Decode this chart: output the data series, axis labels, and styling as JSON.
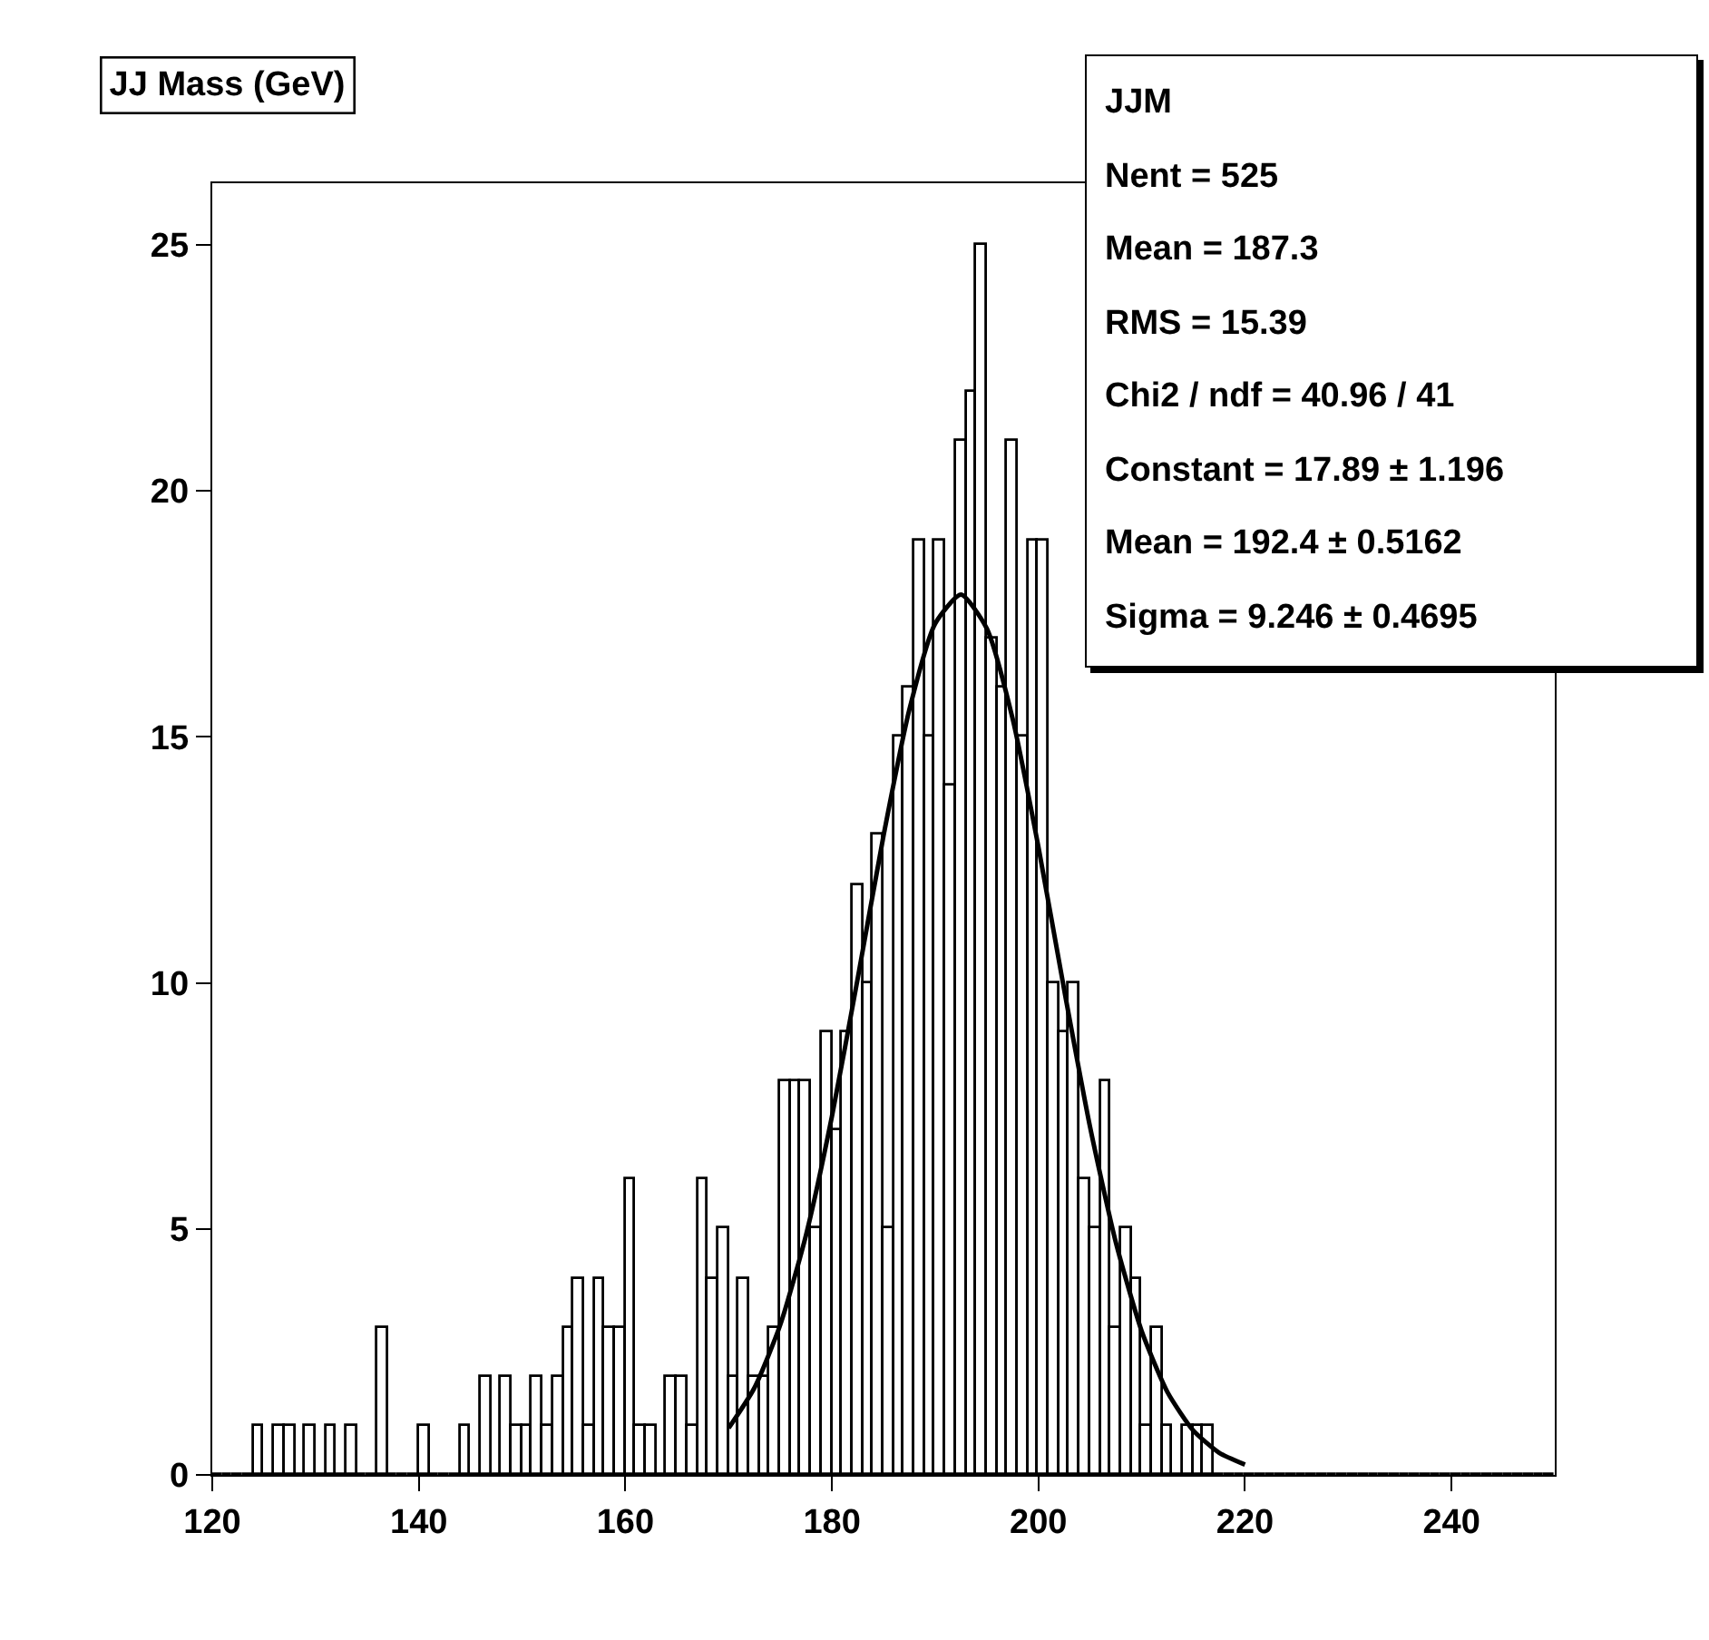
{
  "chart_data": {
    "type": "histogram",
    "title": "JJ Mass (GeV)",
    "bins": [
      120,
      121,
      122,
      123,
      124,
      125,
      126,
      127,
      128,
      129,
      130,
      131,
      132,
      133,
      134,
      135,
      136,
      137,
      138,
      139,
      140,
      141,
      142,
      143,
      144,
      145,
      146,
      147,
      148,
      149,
      150,
      151,
      152,
      153,
      154,
      155,
      156,
      157,
      158,
      159,
      160,
      161,
      162,
      163,
      164,
      165,
      166,
      167,
      168,
      169,
      170,
      171,
      172,
      173,
      174,
      175,
      176,
      177,
      178,
      179,
      180,
      181,
      182,
      183,
      184,
      185,
      186,
      187,
      188,
      189,
      190,
      191,
      192,
      193,
      194,
      195,
      196,
      197,
      198,
      199,
      200,
      201,
      202,
      203,
      204,
      205,
      206,
      207,
      208,
      209,
      210,
      211,
      212,
      213,
      214,
      215,
      216,
      217,
      218,
      219,
      220,
      221,
      222,
      223,
      224,
      225,
      226,
      227,
      228,
      229,
      230,
      231,
      232,
      233,
      234,
      235,
      236,
      237,
      238,
      239,
      240,
      241,
      242,
      243,
      244,
      245,
      246,
      247,
      248,
      249,
      250
    ],
    "values": [
      0,
      0,
      0,
      0,
      1,
      0,
      1,
      1,
      0,
      1,
      0,
      1,
      0,
      1,
      0,
      0,
      3,
      0,
      0,
      0,
      1,
      0,
      0,
      0,
      1,
      0,
      2,
      0,
      2,
      1,
      1,
      2,
      1,
      2,
      3,
      4,
      1,
      4,
      3,
      3,
      6,
      1,
      1,
      0,
      2,
      2,
      1,
      6,
      4,
      5,
      2,
      4,
      2,
      2,
      3,
      8,
      8,
      8,
      5,
      9,
      7,
      9,
      12,
      10,
      13,
      5,
      15,
      16,
      19,
      15,
      19,
      14,
      21,
      22,
      25,
      17,
      16,
      21,
      15,
      19,
      19,
      10,
      9,
      10,
      6,
      5,
      8,
      3,
      5,
      4,
      1,
      3,
      1,
      0,
      1,
      1,
      1,
      0,
      0,
      0,
      0,
      0,
      0,
      0,
      0,
      0,
      0,
      0,
      0,
      0,
      0,
      0,
      0,
      0,
      0,
      0,
      0,
      0,
      0,
      0,
      0,
      0,
      0,
      0,
      0,
      0,
      0,
      0,
      0,
      0
    ],
    "color": "#000000",
    "series": [
      {
        "type": "line",
        "color": "#000000",
        "x": [
          170,
          172.5,
          175,
          177.5,
          180,
          182.5,
          185,
          187.5,
          190,
          192.5,
          195,
          197.5,
          200,
          202.5,
          205,
          207.5,
          210,
          212.5,
          215,
          217.5,
          220
        ],
        "values": [
          0.95,
          1.77,
          3.05,
          4.88,
          7.28,
          10.09,
          12.99,
          15.55,
          17.3,
          17.89,
          17.2,
          15.37,
          12.76,
          9.85,
          7.07,
          4.72,
          2.92,
          1.68,
          0.9,
          0.45,
          0.21
        ]
      }
    ],
    "xlim": [
      120,
      250
    ],
    "xticks": [
      120,
      140,
      160,
      180,
      200,
      220,
      240
    ],
    "ylim": [
      0,
      26.25
    ],
    "yticks": [
      0,
      5,
      10,
      15,
      20,
      25
    ],
    "grid": false,
    "legend": false,
    "annotations": [
      "JJM",
      "Nent = 525",
      "Mean = 187.3",
      "RMS = 15.39",
      "Chi2 / ndf = 40.96 / 41",
      "Constant = 17.89 ± 1.196",
      "Mean = 192.4 ± 0.5162",
      "Sigma = 9.246 ± 0.4695"
    ]
  }
}
